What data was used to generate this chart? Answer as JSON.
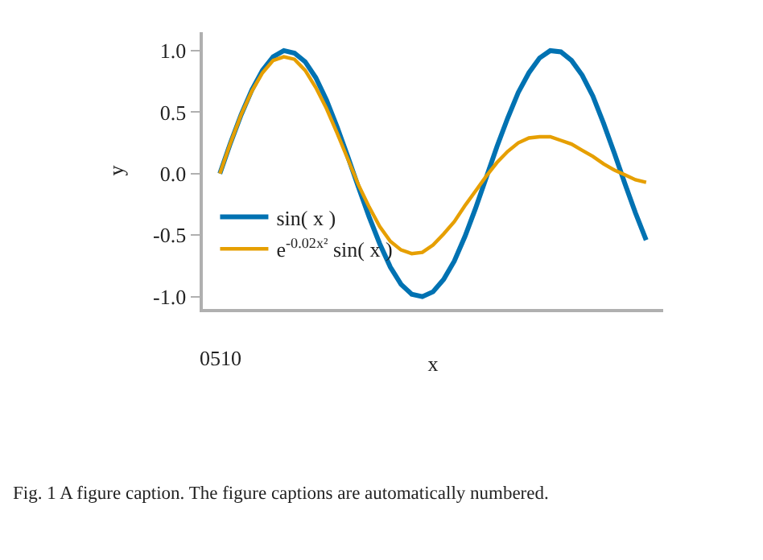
{
  "chart_data": {
    "type": "line",
    "xlabel": "x",
    "ylabel": "y",
    "categories": [
      null,
      null,
      null,
      null,
      null,
      null,
      null,
      null,
      null,
      null,
      null,
      null,
      null,
      null,
      null,
      null,
      null,
      null,
      null,
      null,
      null,
      null,
      null,
      null,
      null,
      null,
      null,
      null,
      null,
      null,
      null,
      null,
      null,
      null,
      null,
      null,
      null,
      null,
      null,
      null,
      null
    ],
    "series": [
      {
        "name": "sin( x )",
        "color": "#0072b2",
        "values": [
          0,
          0.25,
          0.48,
          0.68,
          0.84,
          0.95,
          1.0,
          0.98,
          0.91,
          0.78,
          0.6,
          0.38,
          0.14,
          -0.11,
          -0.35,
          -0.57,
          -0.76,
          -0.9,
          -0.98,
          -1.0,
          -0.96,
          -0.86,
          -0.71,
          -0.51,
          -0.28,
          -0.03,
          0.22,
          0.45,
          0.66,
          0.82,
          0.94,
          1.0,
          0.99,
          0.92,
          0.8,
          0.63,
          0.41,
          0.17,
          -0.08,
          -0.32,
          -0.54
        ]
      },
      {
        "name": "e$^{-0.02x²}$ sin( x )",
        "color": "#e69f00",
        "values": [
          0,
          0.25,
          0.48,
          0.67,
          0.82,
          0.92,
          0.95,
          0.93,
          0.84,
          0.7,
          0.53,
          0.33,
          0.12,
          -0.09,
          -0.27,
          -0.43,
          -0.55,
          -0.62,
          -0.65,
          -0.64,
          -0.58,
          -0.49,
          -0.39,
          -0.26,
          -0.14,
          -0.02,
          0.09,
          0.18,
          0.25,
          0.29,
          0.3,
          0.3,
          0.27,
          0.24,
          0.19,
          0.14,
          0.08,
          0.03,
          -0.01,
          -0.05,
          -0.07
        ]
      }
    ],
    "ylim": [
      -1.1,
      1.15
    ],
    "yticks": [
      {
        "value": -1,
        "label": "-1.0"
      },
      {
        "value": -0.5,
        "label": "-0.5"
      },
      {
        "value": 0,
        "label": "0.0"
      },
      {
        "value": 0.5,
        "label": "0.5"
      },
      {
        "value": 1,
        "label": "1.0"
      }
    ],
    "grid": false,
    "legend": "left",
    "marker": "none",
    "line_style": "solid",
    "annotations": [
      "0510",
      "Fig. 1 A figure caption. The figure captions are automatically numbered."
    ]
  }
}
